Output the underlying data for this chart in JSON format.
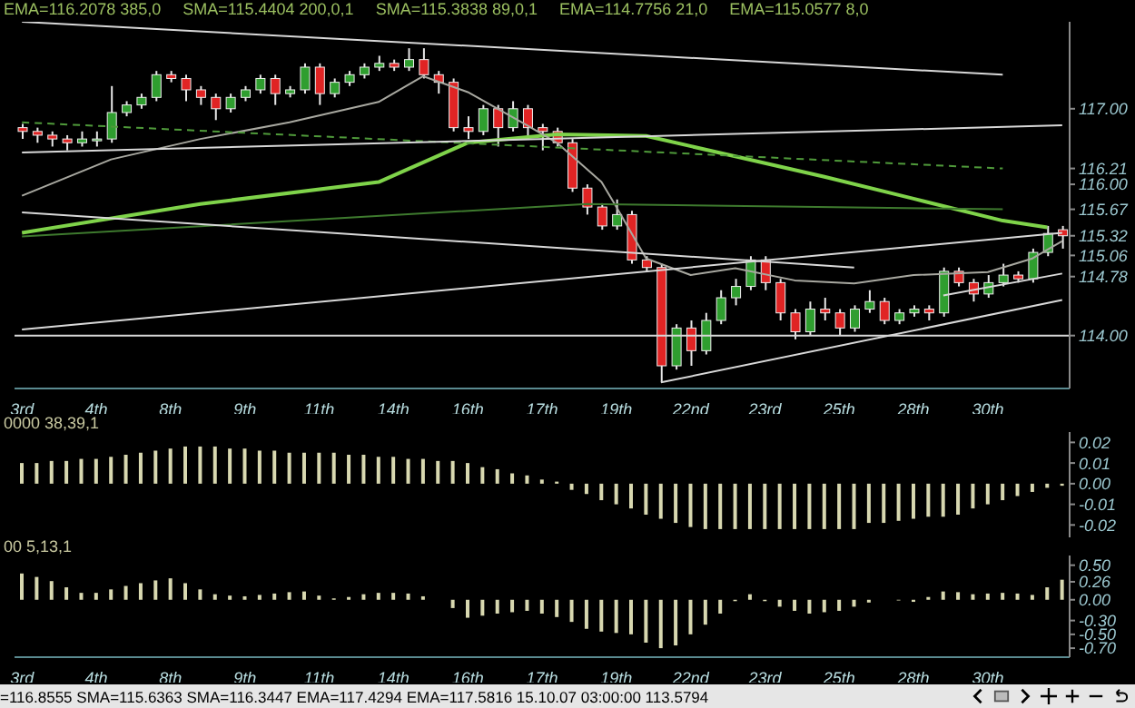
{
  "chart_data": [
    {
      "type": "candlestick",
      "annotations": [
        "EMA=116.2078 385,0",
        "SMA=115.4404 200,0,1",
        "SMA=115.3838 89,0,1",
        "EMA=114.7756 21,0",
        "EMA=115.0577 8,0"
      ],
      "categories": [
        "3rd",
        null,
        null,
        null,
        null,
        "4th",
        null,
        null,
        null,
        null,
        "8th",
        null,
        null,
        null,
        null,
        "9th",
        null,
        null,
        null,
        null,
        "11th",
        null,
        null,
        null,
        null,
        "14th",
        null,
        null,
        null,
        null,
        "16th",
        null,
        null,
        null,
        null,
        "17th",
        null,
        null,
        null,
        null,
        "19th",
        null,
        null,
        null,
        null,
        "22nd",
        null,
        null,
        null,
        null,
        "23rd",
        null,
        null,
        null,
        null,
        "25th",
        null,
        null,
        null,
        null,
        "28th",
        null,
        null,
        null,
        null,
        "30th",
        null,
        null,
        null,
        null,
        null
      ],
      "ohlc": [
        [
          116.75,
          116.8,
          116.6,
          116.7
        ],
        [
          116.7,
          116.75,
          116.55,
          116.65
        ],
        [
          116.65,
          116.7,
          116.5,
          116.6
        ],
        [
          116.6,
          116.65,
          116.45,
          116.55
        ],
        [
          116.55,
          116.7,
          116.5,
          116.6
        ],
        [
          116.6,
          116.7,
          116.5,
          116.6
        ],
        [
          116.6,
          117.3,
          116.55,
          116.95
        ],
        [
          116.95,
          117.1,
          116.9,
          117.05
        ],
        [
          117.05,
          117.2,
          117.0,
          117.15
        ],
        [
          117.15,
          117.5,
          117.1,
          117.45
        ],
        [
          117.45,
          117.5,
          117.35,
          117.4
        ],
        [
          117.4,
          117.45,
          117.1,
          117.25
        ],
        [
          117.25,
          117.3,
          117.05,
          117.15
        ],
        [
          117.15,
          117.2,
          116.85,
          117.0
        ],
        [
          117.0,
          117.2,
          116.95,
          117.15
        ],
        [
          117.15,
          117.3,
          117.1,
          117.25
        ],
        [
          117.25,
          117.45,
          117.2,
          117.4
        ],
        [
          117.4,
          117.45,
          117.05,
          117.2
        ],
        [
          117.2,
          117.3,
          117.15,
          117.25
        ],
        [
          117.25,
          117.6,
          117.2,
          117.55
        ],
        [
          117.55,
          117.6,
          117.05,
          117.2
        ],
        [
          117.2,
          117.4,
          117.15,
          117.35
        ],
        [
          117.35,
          117.5,
          117.3,
          117.45
        ],
        [
          117.45,
          117.6,
          117.4,
          117.55
        ],
        [
          117.55,
          117.7,
          117.5,
          117.6
        ],
        [
          117.6,
          117.65,
          117.5,
          117.55
        ],
        [
          117.55,
          117.8,
          117.5,
          117.65
        ],
        [
          117.65,
          117.8,
          117.4,
          117.45
        ],
        [
          117.45,
          117.5,
          117.2,
          117.35
        ],
        [
          117.35,
          117.4,
          116.7,
          116.75
        ],
        [
          116.75,
          116.9,
          116.6,
          116.7
        ],
        [
          116.7,
          117.05,
          116.65,
          117.0
        ],
        [
          117.0,
          117.05,
          116.5,
          116.75
        ],
        [
          116.75,
          117.1,
          116.7,
          117.0
        ],
        [
          117.0,
          117.05,
          116.6,
          116.75
        ],
        [
          116.75,
          116.8,
          116.45,
          116.7
        ],
        [
          116.7,
          116.75,
          116.5,
          116.55
        ],
        [
          116.55,
          116.6,
          115.9,
          115.95
        ],
        [
          115.95,
          116.0,
          115.6,
          115.7
        ],
        [
          115.7,
          115.75,
          115.4,
          115.45
        ],
        [
          115.45,
          115.8,
          115.4,
          115.6
        ],
        [
          115.6,
          115.65,
          114.95,
          115.0
        ],
        [
          115.0,
          115.05,
          114.85,
          114.9
        ],
        [
          114.9,
          114.95,
          113.38,
          113.6
        ],
        [
          113.6,
          114.15,
          113.55,
          114.1
        ],
        [
          114.1,
          114.2,
          113.6,
          113.8
        ],
        [
          113.8,
          114.3,
          113.75,
          114.2
        ],
        [
          114.2,
          114.6,
          114.15,
          114.5
        ],
        [
          114.5,
          114.75,
          114.4,
          114.65
        ],
        [
          114.65,
          115.05,
          114.6,
          115.0
        ],
        [
          115.0,
          115.05,
          114.6,
          114.7
        ],
        [
          114.7,
          114.75,
          114.2,
          114.3
        ],
        [
          114.3,
          114.35,
          113.95,
          114.05
        ],
        [
          114.05,
          114.45,
          114.0,
          114.35
        ],
        [
          114.35,
          114.5,
          114.2,
          114.3
        ],
        [
          114.3,
          114.35,
          114.0,
          114.1
        ],
        [
          114.1,
          114.4,
          114.05,
          114.35
        ],
        [
          114.35,
          114.6,
          114.3,
          114.45
        ],
        [
          114.45,
          114.5,
          114.15,
          114.2
        ],
        [
          114.2,
          114.35,
          114.15,
          114.3
        ],
        [
          114.3,
          114.4,
          114.25,
          114.35
        ],
        [
          114.35,
          114.4,
          114.2,
          114.3
        ],
        [
          114.3,
          114.9,
          114.25,
          114.85
        ],
        [
          114.85,
          114.9,
          114.65,
          114.7
        ],
        [
          114.7,
          114.75,
          114.45,
          114.55
        ],
        [
          114.55,
          114.8,
          114.5,
          114.7
        ],
        [
          114.7,
          114.95,
          114.65,
          114.8
        ],
        [
          114.8,
          114.85,
          114.7,
          114.75
        ],
        [
          114.75,
          115.15,
          114.7,
          115.1
        ],
        [
          115.1,
          115.45,
          115.05,
          115.35
        ],
        [
          115.4,
          115.45,
          115.15,
          115.32
        ]
      ],
      "series": [
        {
          "type": "line",
          "color": "#7fd34a",
          "values": [
            115.36,
            null,
            null,
            null,
            null,
            null,
            null,
            null,
            null,
            null,
            null,
            null,
            115.74,
            null,
            null,
            null,
            null,
            null,
            null,
            null,
            null,
            null,
            null,
            null,
            116.03,
            null,
            null,
            null,
            null,
            null,
            116.55,
            null,
            null,
            null,
            null,
            null,
            116.66,
            null,
            null,
            null,
            null,
            null,
            116.64,
            null,
            null,
            null,
            null,
            null,
            116.37,
            null,
            null,
            null,
            null,
            null,
            116.1,
            null,
            null,
            null,
            null,
            null,
            115.81,
            null,
            null,
            null,
            null,
            null,
            115.52,
            null,
            null,
            115.43,
            null
          ]
        },
        {
          "type": "line",
          "color": "#a8a8a0",
          "values": [
            115.85,
            null,
            null,
            null,
            null,
            null,
            116.33,
            null,
            null,
            null,
            null,
            null,
            116.6,
            null,
            null,
            null,
            null,
            null,
            116.82,
            null,
            null,
            null,
            null,
            null,
            117.09,
            null,
            null,
            117.43,
            null,
            null,
            117.22,
            null,
            null,
            null,
            116.78,
            null,
            116.55,
            null,
            null,
            116.03,
            115.7,
            null,
            115.02,
            null,
            null,
            114.8,
            null,
            null,
            114.89,
            null,
            null,
            null,
            114.73,
            null,
            null,
            null,
            114.69,
            null,
            null,
            null,
            114.8,
            null,
            null,
            null,
            null,
            114.84,
            null,
            null,
            115.02,
            null,
            115.25
          ]
        },
        {
          "type": "line",
          "color": "#4f9a3a",
          "line_style": "dashed",
          "values": [
            116.82,
            null,
            null,
            null,
            null,
            null,
            null,
            null,
            null,
            null,
            null,
            null,
            null,
            null,
            null,
            null,
            null,
            null,
            null,
            null,
            null,
            null,
            null,
            null,
            null,
            null,
            null,
            null,
            null,
            null,
            null,
            null,
            null,
            null,
            null,
            null,
            null,
            null,
            null,
            null,
            null,
            null,
            null,
            null,
            null,
            null,
            null,
            null,
            null,
            null,
            null,
            null,
            null,
            null,
            null,
            null,
            null,
            null,
            null,
            null,
            null,
            null,
            null,
            null,
            null,
            null,
            116.21,
            null,
            null,
            null,
            null
          ]
        },
        {
          "type": "line",
          "color": "#3e7a2e",
          "values": [
            115.31,
            null,
            null,
            null,
            null,
            null,
            null,
            null,
            null,
            null,
            null,
            null,
            null,
            null,
            null,
            null,
            null,
            null,
            null,
            null,
            null,
            null,
            null,
            null,
            null,
            null,
            null,
            null,
            null,
            null,
            null,
            null,
            null,
            null,
            null,
            null,
            null,
            null,
            115.74,
            null,
            null,
            null,
            null,
            null,
            null,
            null,
            null,
            null,
            null,
            null,
            null,
            null,
            null,
            null,
            null,
            null,
            null,
            null,
            null,
            null,
            null,
            null,
            null,
            null,
            null,
            null,
            115.67,
            null,
            null,
            null,
            null
          ]
        },
        {
          "type": "line",
          "color": "#d8d8d8",
          "values": [
            118.15,
            null,
            null,
            null,
            null,
            null,
            null,
            null,
            null,
            null,
            null,
            null,
            null,
            null,
            null,
            null,
            null,
            null,
            null,
            null,
            null,
            null,
            null,
            null,
            null,
            null,
            null,
            null,
            null,
            null,
            null,
            null,
            null,
            null,
            null,
            null,
            null,
            null,
            null,
            null,
            null,
            null,
            null,
            null,
            null,
            null,
            null,
            null,
            null,
            null,
            null,
            null,
            null,
            null,
            null,
            null,
            null,
            null,
            null,
            null,
            null,
            null,
            null,
            null,
            null,
            null,
            117.45,
            null,
            null,
            null,
            null
          ]
        },
        {
          "type": "line",
          "color": "#d8d8d8",
          "values": [
            116.42,
            null,
            null,
            null,
            null,
            null,
            null,
            null,
            null,
            null,
            null,
            null,
            null,
            null,
            null,
            null,
            null,
            null,
            null,
            null,
            null,
            null,
            null,
            null,
            null,
            null,
            null,
            null,
            null,
            null,
            null,
            null,
            null,
            null,
            null,
            null,
            null,
            null,
            null,
            null,
            null,
            null,
            null,
            null,
            null,
            null,
            null,
            null,
            null,
            null,
            null,
            null,
            null,
            null,
            null,
            null,
            null,
            null,
            null,
            null,
            null,
            null,
            null,
            null,
            null,
            null,
            null,
            null,
            null,
            null,
            116.78
          ]
        },
        {
          "type": "line",
          "color": "#d8d8d8",
          "values": [
            115.63,
            null,
            null,
            null,
            null,
            null,
            null,
            null,
            null,
            null,
            null,
            null,
            null,
            null,
            null,
            null,
            null,
            null,
            null,
            null,
            null,
            null,
            null,
            null,
            null,
            null,
            null,
            null,
            null,
            null,
            null,
            null,
            null,
            null,
            null,
            null,
            null,
            null,
            null,
            null,
            null,
            null,
            null,
            null,
            null,
            null,
            null,
            null,
            null,
            null,
            null,
            null,
            null,
            null,
            null,
            null,
            114.9,
            null,
            null,
            null,
            null,
            null,
            null,
            null,
            null,
            null,
            null,
            null,
            null,
            null,
            null
          ]
        },
        {
          "type": "line",
          "color": "#d8d8d8",
          "values": [
            114.08,
            null,
            null,
            null,
            null,
            null,
            null,
            null,
            null,
            null,
            null,
            null,
            null,
            null,
            null,
            null,
            null,
            null,
            null,
            null,
            null,
            null,
            null,
            null,
            null,
            null,
            null,
            null,
            null,
            null,
            null,
            null,
            null,
            null,
            null,
            null,
            null,
            null,
            null,
            null,
            null,
            null,
            null,
            null,
            null,
            null,
            null,
            null,
            null,
            null,
            null,
            null,
            null,
            null,
            null,
            null,
            null,
            null,
            null,
            null,
            null,
            null,
            null,
            null,
            null,
            null,
            null,
            null,
            null,
            null,
            115.36
          ]
        },
        {
          "type": "line",
          "color": "#d8d8d8",
          "values": [
            null,
            null,
            null,
            null,
            null,
            null,
            null,
            null,
            null,
            null,
            null,
            null,
            null,
            null,
            null,
            null,
            null,
            null,
            null,
            null,
            null,
            null,
            null,
            null,
            null,
            null,
            null,
            null,
            null,
            null,
            null,
            null,
            null,
            null,
            null,
            null,
            null,
            null,
            null,
            null,
            null,
            null,
            null,
            113.38,
            null,
            null,
            null,
            null,
            null,
            null,
            null,
            null,
            null,
            null,
            null,
            null,
            null,
            null,
            null,
            null,
            null,
            null,
            null,
            null,
            null,
            null,
            null,
            null,
            null,
            null,
            114.47
          ]
        },
        {
          "type": "line",
          "color": "#d8d8d8",
          "values": [
            null,
            null,
            null,
            null,
            null,
            null,
            null,
            null,
            null,
            null,
            null,
            null,
            null,
            null,
            null,
            null,
            null,
            null,
            null,
            null,
            null,
            null,
            null,
            null,
            null,
            null,
            null,
            null,
            null,
            null,
            null,
            null,
            null,
            null,
            null,
            null,
            null,
            null,
            null,
            null,
            null,
            null,
            null,
            null,
            null,
            null,
            null,
            null,
            null,
            null,
            null,
            null,
            null,
            null,
            null,
            null,
            null,
            null,
            null,
            null,
            null,
            null,
            114.53,
            null,
            null,
            null,
            null,
            null,
            null,
            null,
            114.82
          ]
        }
      ],
      "ref_lines": [
        {
          "axis": "y",
          "value": 114,
          "color": "#d8d8d8"
        }
      ],
      "ylim": [
        113.3,
        118.15
      ],
      "yticks": [
        {
          "value": 114,
          "label": "114.00"
        },
        {
          "value": 114.78,
          "label": "114.78"
        },
        {
          "value": 115.06,
          "label": "115.06"
        },
        {
          "value": 115.32,
          "label": "115.32"
        },
        {
          "value": 115.67,
          "label": "115.67"
        },
        {
          "value": 116,
          "label": "116.00"
        },
        {
          "value": 116.21,
          "label": "116.21"
        },
        {
          "value": 117,
          "label": "117.00"
        }
      ]
    },
    {
      "type": "bar",
      "title": "0000 38,39,1",
      "color": "#d8d8b0",
      "tick_labels": "y",
      "categories": [
        null,
        null,
        null,
        null,
        null,
        null,
        null,
        null,
        null,
        null,
        null,
        null,
        null,
        null,
        null,
        null,
        null,
        null,
        null,
        null,
        null,
        null,
        null,
        null,
        null,
        null,
        null,
        null,
        null,
        null,
        null,
        null,
        null,
        null,
        null,
        null,
        null,
        null,
        null,
        null,
        null,
        null,
        null,
        null,
        null,
        null,
        null,
        null,
        null,
        null,
        null,
        null,
        null,
        null,
        null,
        null,
        null,
        null,
        null,
        null,
        null,
        null,
        null,
        null,
        null,
        null,
        null,
        null,
        null,
        null,
        null
      ],
      "values": [
        0.01,
        0.01,
        0.011,
        0.011,
        0.012,
        0.012,
        0.013,
        0.014,
        0.015,
        0.016,
        0.017,
        0.018,
        0.018,
        0.018,
        0.017,
        0.017,
        0.016,
        0.016,
        0.015,
        0.015,
        0.015,
        0.015,
        0.014,
        0.014,
        0.013,
        0.013,
        0.012,
        0.012,
        0.011,
        0.011,
        0.01,
        0.008,
        0.007,
        0.005,
        0.004,
        0.002,
        0.001,
        -0.003,
        -0.005,
        -0.008,
        -0.01,
        -0.012,
        -0.015,
        -0.017,
        -0.019,
        -0.021,
        -0.022,
        -0.022,
        -0.022,
        -0.022,
        -0.022,
        -0.022,
        -0.022,
        -0.022,
        -0.022,
        -0.022,
        -0.022,
        -0.019,
        -0.019,
        -0.018,
        -0.017,
        -0.016,
        -0.016,
        -0.015,
        -0.012,
        -0.01,
        -0.008,
        -0.006,
        -0.004,
        -0.002,
        -0.001
      ],
      "ylim": [
        -0.026,
        0.025
      ],
      "yticks": [
        {
          "value": -0.02,
          "label": "-0.02"
        },
        {
          "value": -0.01,
          "label": "-0.01"
        },
        {
          "value": 0,
          "label": "0.00"
        },
        {
          "value": 0.01,
          "label": "0.01"
        },
        {
          "value": 0.02,
          "label": "0.02"
        }
      ]
    },
    {
      "type": "bar",
      "title": "00 5,13,1",
      "color": "#d8d8b0",
      "annotations": [
        "=116.8555 SMA=115.6363 SMA=116.3447 EMA=117.4294 EMA=117.5816  15.10.07 03:00:00 113.5794"
      ],
      "categories": [
        "3rd",
        null,
        null,
        null,
        null,
        "4th",
        null,
        null,
        null,
        null,
        "8th",
        null,
        null,
        null,
        null,
        "9th",
        null,
        null,
        null,
        null,
        "11th",
        null,
        null,
        null,
        null,
        "14th",
        null,
        null,
        null,
        null,
        "16th",
        null,
        null,
        null,
        null,
        "17th",
        null,
        null,
        null,
        null,
        "19th",
        null,
        null,
        null,
        null,
        "22nd",
        null,
        null,
        null,
        null,
        "23rd",
        null,
        null,
        null,
        null,
        "25th",
        null,
        null,
        null,
        null,
        "28th",
        null,
        null,
        null,
        null,
        "30th",
        null,
        null,
        null,
        null,
        null
      ],
      "values": [
        0.38,
        0.33,
        0.27,
        0.18,
        0.1,
        0.1,
        0.15,
        0.2,
        0.24,
        0.28,
        0.31,
        0.24,
        0.15,
        0.08,
        0.06,
        0.05,
        0.07,
        0.09,
        0.11,
        0.12,
        0.06,
        0.02,
        0.04,
        0.08,
        0.1,
        0.1,
        0.09,
        0.05,
        0.0,
        -0.12,
        -0.26,
        -0.23,
        -0.2,
        -0.18,
        -0.16,
        -0.2,
        -0.25,
        -0.32,
        -0.42,
        -0.46,
        -0.48,
        -0.5,
        -0.62,
        -0.7,
        -0.66,
        -0.5,
        -0.36,
        -0.2,
        -0.02,
        0.08,
        -0.02,
        -0.1,
        -0.16,
        -0.2,
        -0.18,
        -0.16,
        -0.1,
        -0.04,
        0.0,
        -0.01,
        -0.03,
        0.04,
        0.12,
        0.11,
        0.08,
        0.09,
        0.1,
        0.09,
        0.07,
        0.18,
        0.29
      ],
      "ylim": [
        -0.83,
        0.64
      ],
      "yticks": [
        {
          "value": -0.7,
          "label": "-0.70"
        },
        {
          "value": -0.5,
          "label": "-0.50"
        },
        {
          "value": -0.3,
          "label": "-0.30"
        },
        {
          "value": 0,
          "label": "0.00"
        },
        {
          "value": 0.26,
          "label": "0.26"
        },
        {
          "value": 0.5,
          "label": "0.50"
        }
      ]
    }
  ]
}
